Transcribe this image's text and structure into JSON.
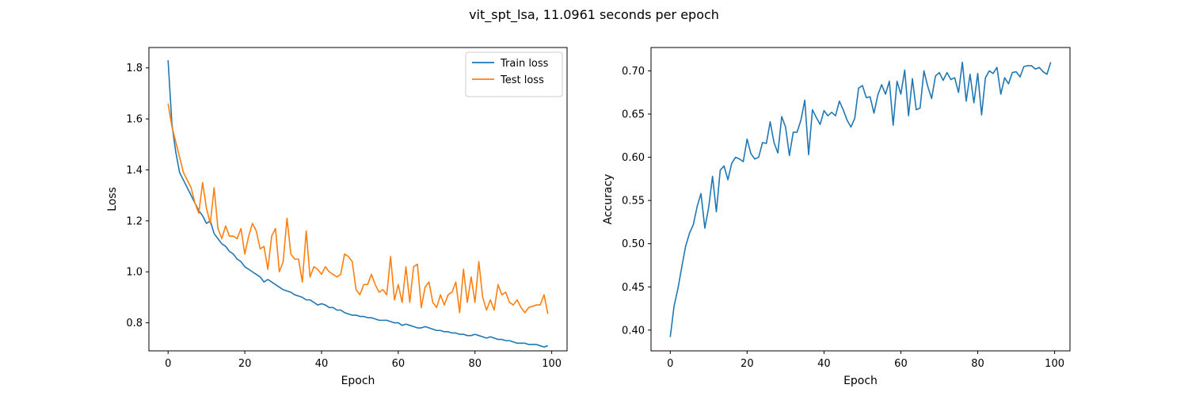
{
  "figure": {
    "title": "vit_spt_lsa, 11.0961 seconds per epoch"
  },
  "chart_data": [
    {
      "type": "line",
      "title": "",
      "xlabel": "Epoch",
      "ylabel": "Loss",
      "xlim": [
        -5,
        104
      ],
      "ylim": [
        0.69,
        1.88
      ],
      "xticks": [
        0,
        20,
        40,
        60,
        80,
        100
      ],
      "yticks": [
        0.8,
        1.0,
        1.2,
        1.4,
        1.6,
        1.8
      ],
      "grid": false,
      "legend": "upper right",
      "series": [
        {
          "name": "Train loss",
          "color": "#1f77b4",
          "values": [
            1.83,
            1.58,
            1.47,
            1.39,
            1.36,
            1.33,
            1.3,
            1.27,
            1.24,
            1.22,
            1.19,
            1.2,
            1.15,
            1.13,
            1.11,
            1.1,
            1.08,
            1.07,
            1.05,
            1.04,
            1.02,
            1.01,
            1.0,
            0.99,
            0.98,
            0.96,
            0.97,
            0.96,
            0.95,
            0.94,
            0.93,
            0.925,
            0.92,
            0.91,
            0.905,
            0.9,
            0.89,
            0.89,
            0.88,
            0.87,
            0.875,
            0.87,
            0.86,
            0.86,
            0.85,
            0.85,
            0.84,
            0.835,
            0.83,
            0.83,
            0.825,
            0.825,
            0.82,
            0.82,
            0.815,
            0.81,
            0.81,
            0.81,
            0.805,
            0.8,
            0.8,
            0.79,
            0.795,
            0.79,
            0.785,
            0.78,
            0.78,
            0.785,
            0.78,
            0.775,
            0.77,
            0.77,
            0.765,
            0.765,
            0.76,
            0.76,
            0.755,
            0.755,
            0.75,
            0.75,
            0.755,
            0.75,
            0.745,
            0.74,
            0.745,
            0.74,
            0.735,
            0.735,
            0.73,
            0.73,
            0.725,
            0.72,
            0.72,
            0.72,
            0.715,
            0.715,
            0.715,
            0.71,
            0.705,
            0.71
          ]
        },
        {
          "name": "Test loss",
          "color": "#ff7f0e",
          "values": [
            1.66,
            1.57,
            1.51,
            1.45,
            1.39,
            1.36,
            1.33,
            1.27,
            1.23,
            1.35,
            1.25,
            1.19,
            1.33,
            1.17,
            1.13,
            1.18,
            1.14,
            1.14,
            1.13,
            1.17,
            1.07,
            1.14,
            1.19,
            1.16,
            1.09,
            1.1,
            1.01,
            1.14,
            1.17,
            1.0,
            1.04,
            1.21,
            1.07,
            1.05,
            1.05,
            0.96,
            1.16,
            0.98,
            1.02,
            1.01,
            0.99,
            1.02,
            1.0,
            0.99,
            0.98,
            0.99,
            1.07,
            1.06,
            1.04,
            0.93,
            0.91,
            0.95,
            0.95,
            0.99,
            0.95,
            0.92,
            0.93,
            0.91,
            1.06,
            0.89,
            0.95,
            0.88,
            1.02,
            0.88,
            1.02,
            1.03,
            0.86,
            0.94,
            0.96,
            0.88,
            0.86,
            0.91,
            0.87,
            0.91,
            0.92,
            0.96,
            0.84,
            1.01,
            0.88,
            0.98,
            0.88,
            1.04,
            0.9,
            0.85,
            0.89,
            0.85,
            0.95,
            0.91,
            0.92,
            0.88,
            0.87,
            0.89,
            0.86,
            0.84,
            0.86,
            0.865,
            0.87,
            0.87,
            0.91,
            0.835
          ]
        }
      ]
    },
    {
      "type": "line",
      "title": "",
      "xlabel": "Epoch",
      "ylabel": "Accuracy",
      "xlim": [
        -5,
        104
      ],
      "ylim": [
        0.376,
        0.727
      ],
      "xticks": [
        0,
        20,
        40,
        60,
        80,
        100
      ],
      "yticks": [
        0.4,
        0.45,
        0.5,
        0.55,
        0.6,
        0.65,
        0.7
      ],
      "grid": false,
      "legend": "none",
      "series": [
        {
          "color": "#1f77b4",
          "values": [
            0.392,
            0.428,
            0.448,
            0.473,
            0.497,
            0.512,
            0.522,
            0.543,
            0.558,
            0.518,
            0.542,
            0.578,
            0.537,
            0.585,
            0.59,
            0.574,
            0.593,
            0.6,
            0.598,
            0.595,
            0.621,
            0.604,
            0.598,
            0.6,
            0.617,
            0.616,
            0.641,
            0.617,
            0.605,
            0.647,
            0.635,
            0.602,
            0.629,
            0.629,
            0.643,
            0.666,
            0.603,
            0.655,
            0.646,
            0.638,
            0.654,
            0.648,
            0.652,
            0.648,
            0.665,
            0.655,
            0.643,
            0.635,
            0.645,
            0.68,
            0.683,
            0.669,
            0.67,
            0.651,
            0.672,
            0.684,
            0.673,
            0.688,
            0.637,
            0.688,
            0.673,
            0.701,
            0.648,
            0.691,
            0.655,
            0.657,
            0.7,
            0.682,
            0.668,
            0.694,
            0.698,
            0.689,
            0.698,
            0.69,
            0.692,
            0.675,
            0.71,
            0.665,
            0.696,
            0.663,
            0.697,
            0.649,
            0.692,
            0.7,
            0.697,
            0.704,
            0.673,
            0.692,
            0.685,
            0.698,
            0.699,
            0.693,
            0.705,
            0.706,
            0.706,
            0.702,
            0.704,
            0.699,
            0.696,
            0.71
          ]
        }
      ]
    }
  ]
}
